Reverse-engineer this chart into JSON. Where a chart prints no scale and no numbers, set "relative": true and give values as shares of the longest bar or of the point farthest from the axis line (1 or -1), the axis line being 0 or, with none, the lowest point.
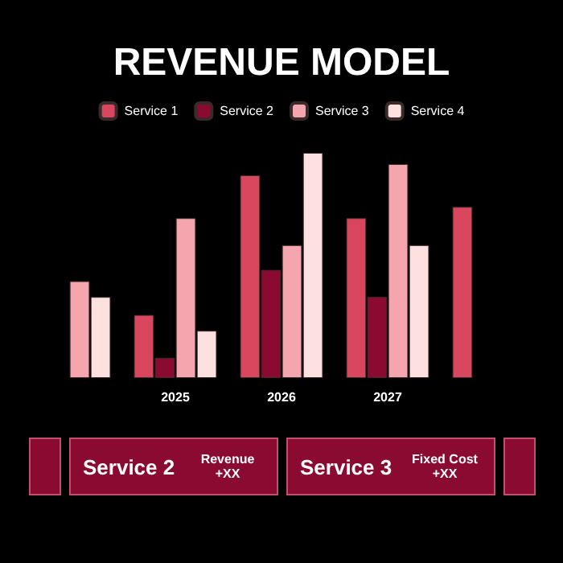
{
  "chart_data": {
    "type": "bar",
    "title": "REVENUE MODEL",
    "relative": true,
    "legend": "top",
    "categories": [
      null,
      "2025",
      "2026",
      "2027",
      null
    ],
    "series": [
      {
        "name": "Service 1",
        "color": "#d9475f",
        "values": [
          null,
          0.28,
          0.9,
          0.71,
          0.76
        ]
      },
      {
        "name": "Service 2",
        "color": "#8b0a32",
        "values": [
          null,
          0.09,
          0.48,
          0.36,
          null
        ]
      },
      {
        "name": "Service 3",
        "color": "#f4a5ae",
        "values": [
          0.43,
          0.71,
          0.59,
          0.95,
          null
        ]
      },
      {
        "name": "Service 4",
        "color": "#fde0e0",
        "values": [
          0.36,
          0.21,
          1,
          0.59,
          null
        ]
      }
    ],
    "annotations": [
      "Service 2",
      "Revenue +XX",
      "Service 3",
      "Fixed Cost +XX"
    ]
  }
}
